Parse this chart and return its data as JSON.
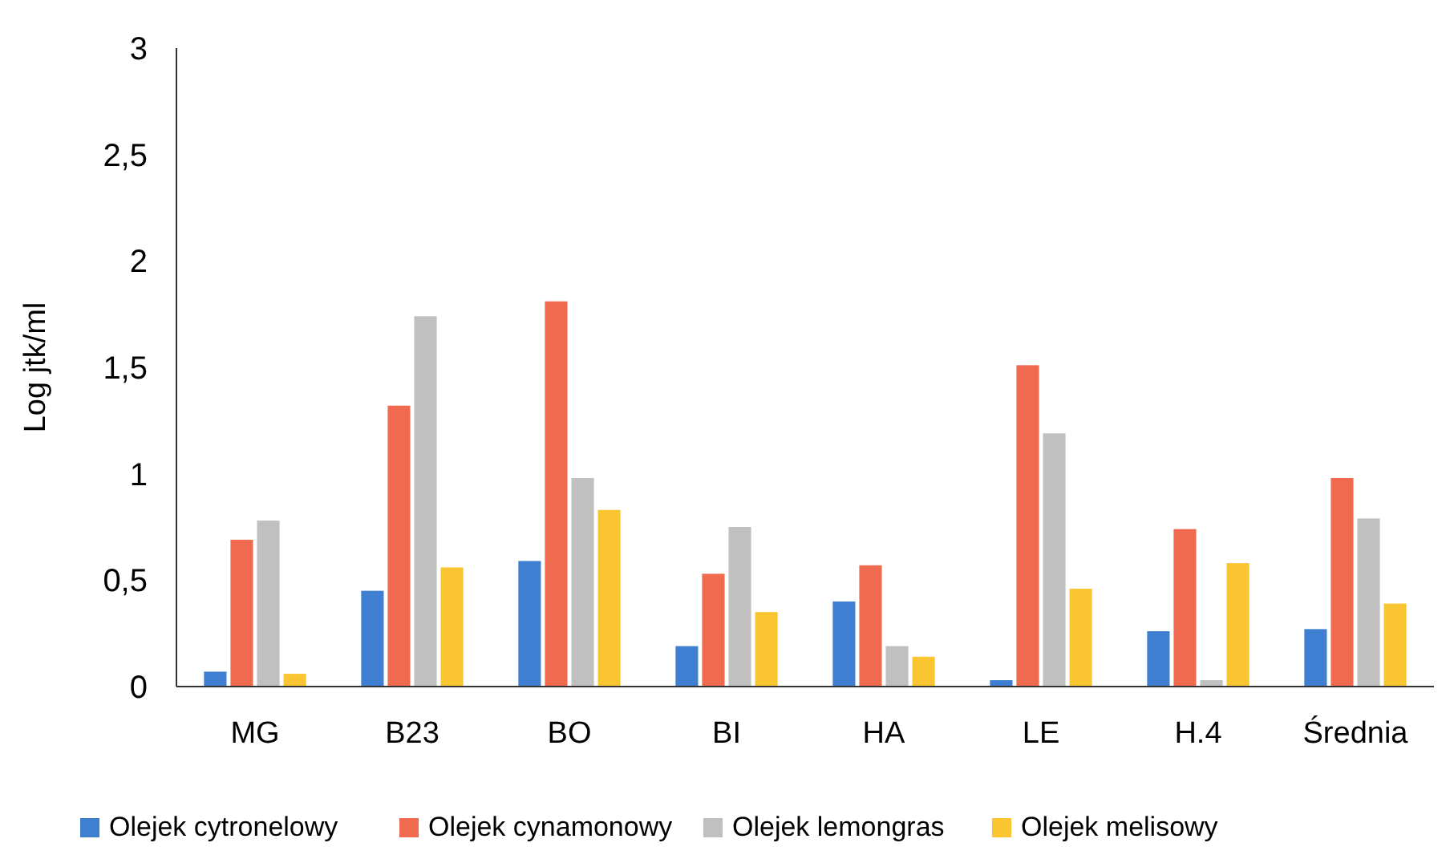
{
  "chart_data": {
    "type": "bar",
    "ylabel": "Log jtk/ml",
    "categories": [
      "MG",
      "B23",
      "BO",
      "BI",
      "HA",
      "LE",
      "H.4",
      "Średnia"
    ],
    "series": [
      {
        "name": "Olejek cytronelowy",
        "color": "#3f7fd1",
        "values": [
          0.07,
          0.45,
          0.59,
          0.19,
          0.4,
          0.03,
          0.26,
          0.27
        ]
      },
      {
        "name": "Olejek cynamonowy",
        "color": "#f06a50",
        "values": [
          0.69,
          1.32,
          1.81,
          0.53,
          0.57,
          1.51,
          0.74,
          0.98
        ]
      },
      {
        "name": "Olejek lemongras",
        "color": "#c0c0c0",
        "values": [
          0.78,
          1.74,
          0.98,
          0.75,
          0.19,
          1.19,
          0.03,
          0.79
        ]
      },
      {
        "name": "Olejek melisowy",
        "color": "#fbc531",
        "values": [
          0.06,
          0.56,
          0.83,
          0.35,
          0.14,
          0.46,
          0.58,
          0.39
        ]
      }
    ],
    "ylim": [
      0,
      3
    ],
    "yticks": [
      0,
      {
        "value": 0.5,
        "label": "0,5"
      },
      1,
      {
        "value": 1.5,
        "label": "1,5"
      },
      2,
      {
        "value": 2.5,
        "label": "2,5"
      },
      3
    ],
    "legend": "bottom"
  }
}
